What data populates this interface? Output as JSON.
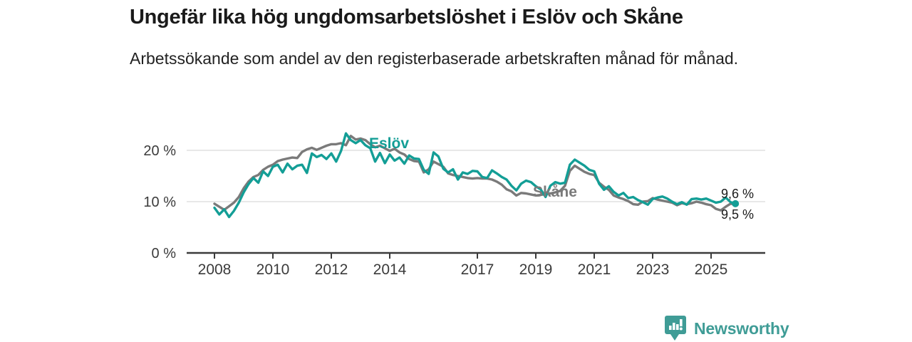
{
  "chart_data": {
    "type": "line",
    "title": "Ungefär lika hög ungdomsarbetslöshet i Eslöv och Skåne",
    "subtitle": "Arbetssökande som andel av den registerbaserade arbetskraften månad för månad.",
    "xlabel": "",
    "ylabel": "",
    "ylim": [
      0,
      25
    ],
    "x_start_year": 2008,
    "x_step_years": 0.1666667,
    "x_end_year": 2025.83,
    "grid": "horizontal",
    "legend_position": "inline-labels",
    "x_ticks": [
      {
        "year": 2008,
        "label": "2008"
      },
      {
        "year": 2010,
        "label": "2010"
      },
      {
        "year": 2012,
        "label": "2012"
      },
      {
        "year": 2014,
        "label": "2014"
      },
      {
        "year": 2017,
        "label": "2017"
      },
      {
        "year": 2019,
        "label": "2019"
      },
      {
        "year": 2021,
        "label": "2021"
      },
      {
        "year": 2023,
        "label": "2023"
      },
      {
        "year": 2025,
        "label": "2025"
      }
    ],
    "y_ticks": [
      {
        "value": 20,
        "label": "20 %"
      },
      {
        "value": 10,
        "label": "10 %"
      },
      {
        "value": 0,
        "label": "0 %"
      }
    ],
    "series": [
      {
        "name": "Eslöv",
        "color": "#139e96",
        "end_label": "9,6 %",
        "end_dot": true,
        "values": [
          8.8,
          7.5,
          8.5,
          7.0,
          8.2,
          9.8,
          11.8,
          13.4,
          14.6,
          13.7,
          15.9,
          15.0,
          16.8,
          17.2,
          15.7,
          17.4,
          16.3,
          17.0,
          17.2,
          15.6,
          19.4,
          18.7,
          19.1,
          18.3,
          19.4,
          17.8,
          19.9,
          23.3,
          22.0,
          21.4,
          22.0,
          21.0,
          20.4,
          17.8,
          19.5,
          17.5,
          19.2,
          18.0,
          18.6,
          17.4,
          19.0,
          18.4,
          18.3,
          16.2,
          15.4,
          19.6,
          18.8,
          16.4,
          15.7,
          16.3,
          14.3,
          15.7,
          15.4,
          16.0,
          15.9,
          14.8,
          14.6,
          16.1,
          15.5,
          14.8,
          14.3,
          13.1,
          12.2,
          13.5,
          14.1,
          13.8,
          13.0,
          12.4,
          10.9,
          13.1,
          13.8,
          13.5,
          13.7,
          17.2,
          18.2,
          17.6,
          17.0,
          16.2,
          15.9,
          13.5,
          12.3,
          13.0,
          11.9,
          11.2,
          11.7,
          10.7,
          10.9,
          10.3,
          9.9,
          9.4,
          10.5,
          10.8,
          11.0,
          10.6,
          10.0,
          9.5,
          9.9,
          9.4,
          10.5,
          10.6,
          10.4,
          10.6,
          10.2,
          9.8,
          10.0,
          10.8,
          9.9,
          9.6
        ]
      },
      {
        "name": "Skåne",
        "color": "#7a7a7a",
        "end_label": "9,5 %",
        "end_dot": false,
        "values": [
          9.6,
          9.0,
          8.4,
          9.1,
          9.8,
          10.9,
          12.6,
          13.9,
          14.8,
          15.2,
          16.2,
          16.8,
          17.2,
          17.9,
          18.2,
          18.4,
          18.6,
          18.5,
          19.7,
          20.2,
          20.5,
          20.1,
          20.5,
          20.9,
          21.2,
          21.2,
          21.4,
          21.0,
          22.8,
          22.1,
          22.3,
          22.0,
          21.2,
          20.6,
          20.9,
          20.4,
          19.9,
          20.3,
          19.6,
          19.2,
          18.3,
          17.9,
          17.8,
          15.7,
          16.3,
          17.8,
          17.3,
          16.8,
          15.5,
          15.2,
          15.0,
          14.8,
          14.6,
          14.5,
          14.6,
          14.5,
          14.5,
          14.3,
          13.9,
          13.3,
          12.4,
          12.0,
          11.2,
          11.7,
          11.6,
          11.4,
          11.2,
          11.3,
          11.5,
          11.6,
          11.8,
          12.1,
          13.1,
          16.0,
          17.0,
          16.4,
          15.8,
          15.4,
          15.2,
          13.7,
          12.9,
          12.3,
          11.2,
          10.8,
          10.5,
          10.1,
          9.5,
          9.4,
          10.0,
          10.1,
          10.7,
          10.4,
          10.2,
          10.0,
          9.8,
          9.3,
          9.7,
          9.5,
          9.7,
          10.0,
          9.8,
          9.5,
          9.3,
          8.6,
          8.3,
          9.0,
          9.6,
          9.5
        ]
      }
    ]
  },
  "footer": {
    "brand": "Newsworthy",
    "brand_color": "#3f9c96"
  },
  "colors": {
    "accent_teal": "#139e96",
    "series_gray": "#7a7a7a",
    "gridline": "#dadada",
    "axis": "#3b3b3b",
    "text_dark": "#1a1a1a"
  }
}
